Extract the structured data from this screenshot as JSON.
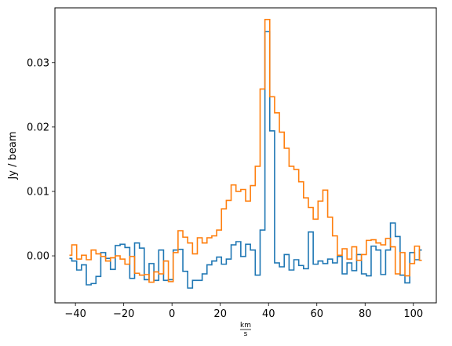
{
  "chart_data": {
    "type": "line",
    "step": "mid",
    "title": "",
    "xlabel_num": "km",
    "xlabel_den": "s",
    "ylabel": "Jy / beam",
    "xlim": [
      -48.5,
      109.5
    ],
    "ylim": [
      -0.0073,
      0.0385
    ],
    "xticks": [
      -40,
      -20,
      0,
      20,
      40,
      60,
      80,
      100
    ],
    "xtick_labels": [
      "−40",
      "−20",
      "0",
      "20",
      "40",
      "60",
      "80",
      "100"
    ],
    "yticks": [
      0.0,
      0.01,
      0.02,
      0.03
    ],
    "ytick_labels": [
      "0.00",
      "0.01",
      "0.02",
      "0.03"
    ],
    "grid": false,
    "series": [
      {
        "color": "#1f77b4",
        "x": [
          -42.5,
          -40.5,
          -38.5,
          -36.5,
          -34.5,
          -32.5,
          -30.5,
          -28.5,
          -26.5,
          -24.5,
          -22.5,
          -20.5,
          -18.5,
          -16.5,
          -14.5,
          -12.5,
          -10.5,
          -8.5,
          -6.5,
          -4.5,
          -2.5,
          -0.5,
          1.5,
          3.5,
          5.5,
          7.5,
          9.5,
          11.5,
          13.5,
          15.5,
          17.5,
          19.5,
          21.5,
          23.5,
          25.5,
          27.5,
          29.5,
          31.5,
          33.5,
          35.5,
          37.5,
          39.5,
          41.5,
          43.5,
          45.5,
          47.5,
          49.5,
          51.5,
          53.5,
          55.5,
          57.5,
          59.5,
          61.5,
          63.5,
          65.5,
          67.5,
          69.5,
          71.5,
          73.5,
          75.5,
          77.5,
          79.5,
          81.5,
          83.5,
          85.5,
          87.5,
          89.5,
          91.5,
          93.5,
          95.5,
          97.5,
          99.5,
          101.5,
          103.5
        ],
        "values": [
          -0.0004,
          -0.0008,
          -0.0022,
          -0.0014,
          -0.0045,
          -0.0043,
          -0.0032,
          0.0005,
          -0.0004,
          -0.0021,
          0.0016,
          0.0018,
          0.0013,
          -0.0035,
          0.002,
          0.0012,
          -0.0037,
          -0.0012,
          -0.0038,
          0.0009,
          -0.0038,
          -0.0037,
          0.0009,
          0.001,
          -0.0024,
          -0.005,
          -0.0038,
          -0.0038,
          -0.0028,
          -0.0014,
          -0.0008,
          -0.0002,
          -0.0013,
          -0.0005,
          0.0017,
          0.0022,
          -0.0001,
          0.0018,
          0.0009,
          -0.003,
          0.004,
          0.0348,
          0.0194,
          -0.0011,
          -0.0017,
          0.0002,
          -0.0022,
          -0.0006,
          -0.0015,
          -0.002,
          0.0037,
          -0.0013,
          -0.0008,
          -0.0012,
          -0.0005,
          -0.0011,
          -0.0001,
          -0.0028,
          -0.0011,
          -0.0023,
          0.0002,
          -0.0028,
          -0.0031,
          0.0015,
          0.0009,
          -0.0029,
          0.0009,
          0.0051,
          0.003,
          -0.003,
          -0.0042,
          0.0005,
          -0.0006,
          0.0009
        ]
      },
      {
        "color": "#ff7f0e",
        "x": [
          -42.5,
          -40.5,
          -38.5,
          -36.5,
          -34.5,
          -32.5,
          -30.5,
          -28.5,
          -26.5,
          -24.5,
          -22.5,
          -20.5,
          -18.5,
          -16.5,
          -14.5,
          -12.5,
          -10.5,
          -8.5,
          -6.5,
          -4.5,
          -2.5,
          -0.5,
          1.5,
          3.5,
          5.5,
          7.5,
          9.5,
          11.5,
          13.5,
          15.5,
          17.5,
          19.5,
          21.5,
          23.5,
          25.5,
          27.5,
          29.5,
          31.5,
          33.5,
          35.5,
          37.5,
          39.5,
          41.5,
          43.5,
          45.5,
          47.5,
          49.5,
          51.5,
          53.5,
          55.5,
          57.5,
          59.5,
          61.5,
          63.5,
          65.5,
          67.5,
          69.5,
          71.5,
          73.5,
          75.5,
          77.5,
          79.5,
          81.5,
          83.5,
          85.5,
          87.5,
          89.5,
          91.5,
          93.5,
          95.5,
          97.5,
          99.5,
          101.5,
          103.5
        ],
        "values": [
          0.0001,
          0.0017,
          -0.0005,
          0.0001,
          -0.0006,
          0.0009,
          0.0003,
          -0.0001,
          -0.0008,
          -0.0003,
          0.0,
          -0.0005,
          -0.0013,
          -0.0001,
          -0.0027,
          -0.003,
          -0.0029,
          -0.0041,
          -0.0025,
          -0.0028,
          -0.0008,
          -0.004,
          0.0005,
          0.0039,
          0.0029,
          0.002,
          0.0003,
          0.0028,
          0.002,
          0.0028,
          0.0031,
          0.004,
          0.0073,
          0.0086,
          0.011,
          0.01,
          0.0103,
          0.0085,
          0.0109,
          0.0139,
          0.0259,
          0.0367,
          0.0247,
          0.0222,
          0.0192,
          0.0167,
          0.0139,
          0.0134,
          0.0115,
          0.009,
          0.0075,
          0.0057,
          0.0085,
          0.0102,
          0.006,
          0.0031,
          0.0001,
          0.0011,
          -0.0005,
          0.0014,
          -0.0007,
          0.0002,
          0.0024,
          0.0025,
          0.002,
          0.0017,
          0.0027,
          0.0014,
          -0.0028,
          0.0005,
          -0.0031,
          -0.0012,
          0.0015,
          -0.0007
        ]
      }
    ]
  }
}
